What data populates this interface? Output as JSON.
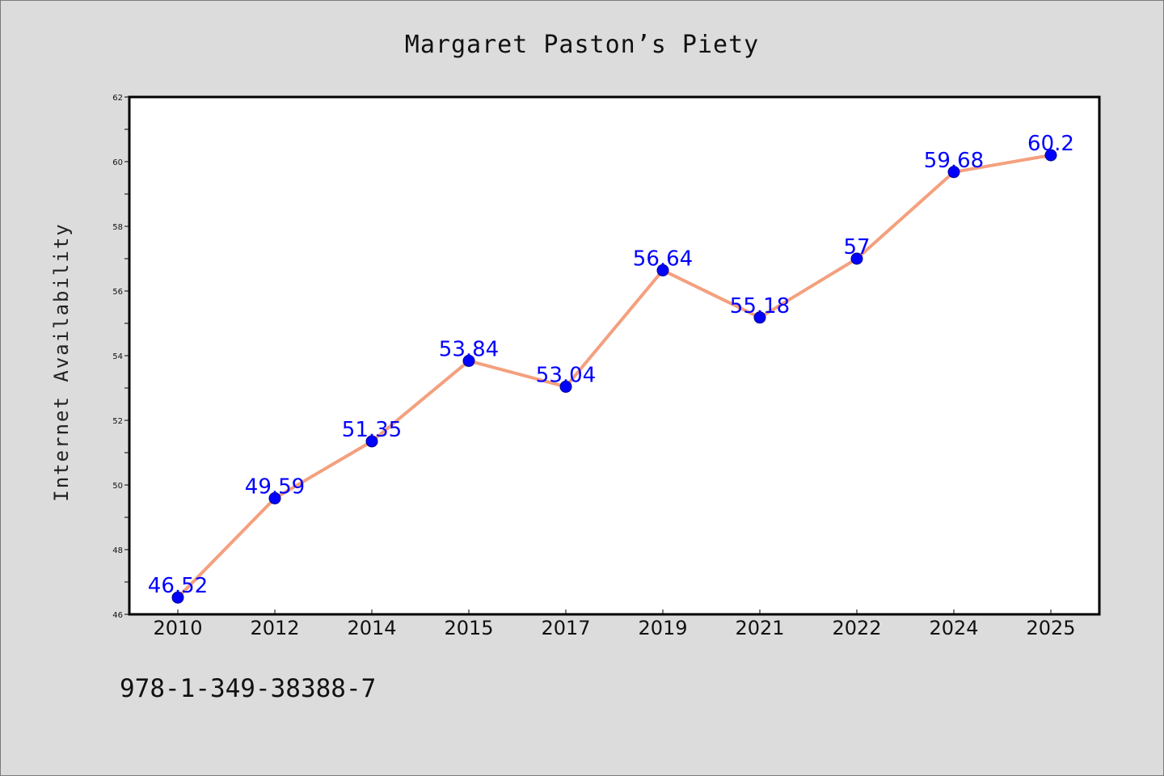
{
  "chart_data": {
    "type": "line",
    "title": "Margaret Paston’s Piety",
    "xlabel": "",
    "ylabel": "Internet Availability",
    "categories": [
      "2010",
      "2012",
      "2014",
      "2015",
      "2017",
      "2019",
      "2021",
      "2022",
      "2024",
      "2025"
    ],
    "series": [
      {
        "values": [
          46.52,
          49.59,
          51.35,
          53.84,
          53.04,
          56.64,
          55.18,
          57,
          59.68,
          60.2
        ],
        "labels": [
          "46.52",
          "49.59",
          "51.35",
          "53.84",
          "53.04",
          "56.64",
          "55.18",
          "57",
          "59.68",
          "60.2"
        ],
        "line_color": "#f4a07e",
        "marker_color": "#0000ff"
      }
    ],
    "ylim": [
      46,
      62
    ],
    "yticks": [
      46,
      48,
      50,
      52,
      54,
      56,
      58,
      60,
      62
    ],
    "grid": false,
    "legend": "none"
  },
  "footnote": "978-1-349-38388-7",
  "colors": {
    "background": "#dcdcdc",
    "plot_background": "#ffffff",
    "label_color": "#0000ff"
  }
}
